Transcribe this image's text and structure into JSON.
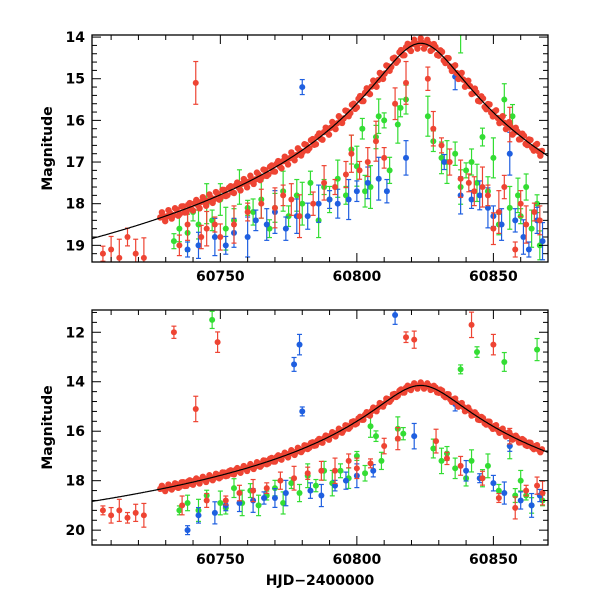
{
  "figure": {
    "xlabel": "HJD−2400000",
    "colors": {
      "green": "#33dd33",
      "blue": "#1f5fe0",
      "red": "#ee4433",
      "fit": "#000000"
    }
  },
  "chart_data": [
    {
      "type": "scatter",
      "ylabel": "Magnitude",
      "xlabel": "",
      "xlim": [
        60703,
        60870
      ],
      "ylim": [
        19.4,
        13.95
      ],
      "y_inverted": true,
      "xticks": [
        60750,
        60800,
        60850
      ],
      "yticks": [
        14,
        15,
        16,
        17,
        18,
        19
      ],
      "grid": false,
      "fit_curve": {
        "name": "model",
        "t0": 60823.4,
        "peak_mag": 14.15
      },
      "series": [
        {
          "color": "green",
          "points": [
            [
              60733,
              18.9
            ],
            [
              60735,
              18.6
            ],
            [
              60738,
              18.7
            ],
            [
              60740,
              18.2
            ],
            [
              60742,
              18.5
            ],
            [
              60745,
              18.0
            ],
            [
              60747,
              18.4
            ],
            [
              60750,
              17.9
            ],
            [
              60752,
              18.6
            ],
            [
              60755,
              18.4
            ],
            [
              60757,
              17.6
            ],
            [
              60760,
              18.1
            ],
            [
              60762,
              18.2
            ],
            [
              60765,
              17.9
            ],
            [
              60768,
              18.6
            ],
            [
              60770,
              18.1
            ],
            [
              60773,
              17.7
            ],
            [
              60775,
              18.3
            ],
            [
              60778,
              17.8
            ],
            [
              60780,
              18.0
            ],
            [
              60783,
              17.5
            ],
            [
              60786,
              18.4
            ],
            [
              60788,
              17.6
            ],
            [
              60790,
              17.9
            ],
            [
              60793,
              17.4
            ],
            [
              60796,
              17.8
            ],
            [
              60798,
              16.7
            ],
            [
              60800,
              17.1
            ],
            [
              60802,
              16.2
            ],
            [
              60803,
              17.7
            ],
            [
              60805,
              17.6
            ],
            [
              60807,
              16.4
            ],
            [
              60808,
              15.9
            ],
            [
              60810,
              16.0
            ],
            [
              60812,
              17.2
            ],
            [
              60815,
              16.1
            ],
            [
              60816,
              15.7
            ],
            [
              60818,
              15.5
            ],
            [
              60826,
              15.9
            ],
            [
              60828,
              16.5
            ],
            [
              60831,
              16.9
            ],
            [
              60833,
              17.0
            ],
            [
              60836,
              16.8
            ],
            [
              60838,
              17.6
            ],
            [
              60840,
              17.2
            ],
            [
              60842,
              17.0
            ],
            [
              60844,
              17.5
            ],
            [
              60846,
              16.4
            ],
            [
              60848,
              17.7
            ],
            [
              60850,
              16.9
            ],
            [
              60852,
              18.5
            ],
            [
              60854,
              15.5
            ],
            [
              60856,
              18.1
            ],
            [
              60857,
              15.9
            ],
            [
              60859,
              17.8
            ],
            [
              60860,
              18.3
            ],
            [
              60862,
              17.6
            ],
            [
              60864,
              18.6
            ],
            [
              60866,
              18.0
            ],
            [
              60867,
              19.0
            ],
            [
              60838,
              13.9
            ]
          ]
        },
        {
          "color": "blue",
          "points": [
            [
              60738,
              19.1
            ],
            [
              60742,
              19.0
            ],
            [
              60748,
              18.8
            ],
            [
              60752,
              19.0
            ],
            [
              60755,
              18.7
            ],
            [
              60760,
              18.8
            ],
            [
              60763,
              18.4
            ],
            [
              60767,
              18.5
            ],
            [
              60770,
              18.2
            ],
            [
              60774,
              18.6
            ],
            [
              60778,
              18.3
            ],
            [
              60780,
              15.2
            ],
            [
              60782,
              18.3
            ],
            [
              60786,
              18.0
            ],
            [
              60790,
              17.9
            ],
            [
              60793,
              18.0
            ],
            [
              60797,
              17.9
            ],
            [
              60800,
              17.7
            ],
            [
              60804,
              17.5
            ],
            [
              60808,
              17.4
            ],
            [
              60811,
              17.7
            ],
            [
              60818,
              16.9
            ],
            [
              60832,
              17.0
            ],
            [
              60836,
              14.95
            ],
            [
              60838,
              17.8
            ],
            [
              60842,
              17.9
            ],
            [
              60845,
              17.8
            ],
            [
              60848,
              18.1
            ],
            [
              60850,
              18.3
            ],
            [
              60853,
              18.5
            ],
            [
              60856,
              16.8
            ],
            [
              60858,
              18.4
            ],
            [
              60861,
              18.8
            ],
            [
              60863,
              19.1
            ],
            [
              60866,
              18.4
            ],
            [
              60868,
              18.9
            ]
          ]
        },
        {
          "color": "red",
          "points": [
            [
              60707,
              19.2
            ],
            [
              60710,
              19.1
            ],
            [
              60713,
              19.3
            ],
            [
              60716,
              18.8
            ],
            [
              60719,
              19.2
            ],
            [
              60722,
              19.3
            ],
            [
              60735,
              19.0
            ],
            [
              60738,
              18.5
            ],
            [
              60741,
              15.1
            ],
            [
              60743,
              18.8
            ],
            [
              60745,
              18.6
            ],
            [
              60748,
              18.5
            ],
            [
              60750,
              18.8
            ],
            [
              60755,
              18.5
            ],
            [
              60760,
              18.2
            ],
            [
              60765,
              18.0
            ],
            [
              60770,
              18.1
            ],
            [
              60773,
              17.8
            ],
            [
              60776,
              17.9
            ],
            [
              60779,
              18.3
            ],
            [
              60784,
              18.0
            ],
            [
              60788,
              17.5
            ],
            [
              60792,
              17.6
            ],
            [
              60796,
              17.3
            ],
            [
              60798,
              16.8
            ],
            [
              60801,
              17.2
            ],
            [
              60804,
              17.0
            ],
            [
              60807,
              16.5
            ],
            [
              60810,
              16.9
            ],
            [
              60814,
              15.6
            ],
            [
              60818,
              15.1
            ],
            [
              60826,
              15.0
            ],
            [
              60828,
              16.2
            ],
            [
              60831,
              16.6
            ],
            [
              60834,
              17.0
            ],
            [
              60838,
              17.4
            ],
            [
              60841,
              17.5
            ],
            [
              60843,
              17.7
            ],
            [
              60846,
              17.6
            ],
            [
              60848,
              17.8
            ],
            [
              60850,
              18.6
            ],
            [
              60852,
              18.2
            ],
            [
              60854,
              17.6
            ],
            [
              60856,
              16.1
            ],
            [
              60858,
              19.1
            ],
            [
              60860,
              18.0
            ],
            [
              60862,
              18.5
            ],
            [
              60865,
              18.2
            ],
            [
              60867,
              18.4
            ]
          ]
        }
      ]
    },
    {
      "type": "scatter",
      "ylabel": "Magnitude",
      "xlabel": "HJD−2400000",
      "xlim": [
        60703,
        60870
      ],
      "ylim": [
        20.6,
        11.1
      ],
      "y_inverted": true,
      "xticks": [
        60750,
        60800,
        60850
      ],
      "yticks": [
        12,
        14,
        16,
        18,
        20
      ],
      "grid": false,
      "fit_curve": {
        "name": "model",
        "t0": 60823.4,
        "peak_mag": 14.15
      },
      "series": [
        {
          "color": "green",
          "points": [
            [
              60735,
              19.2
            ],
            [
              60738,
              18.9
            ],
            [
              60742,
              19.2
            ],
            [
              60745,
              18.6
            ],
            [
              60747,
              11.5
            ],
            [
              60750,
              18.9
            ],
            [
              60752,
              19.1
            ],
            [
              60755,
              18.3
            ],
            [
              60758,
              18.9
            ],
            [
              60761,
              18.4
            ],
            [
              60764,
              19.0
            ],
            [
              60767,
              18.6
            ],
            [
              60770,
              18.3
            ],
            [
              60773,
              18.9
            ],
            [
              60776,
              18.1
            ],
            [
              60779,
              18.5
            ],
            [
              60782,
              17.8
            ],
            [
              60785,
              18.2
            ],
            [
              60788,
              17.6
            ],
            [
              60791,
              18.1
            ],
            [
              60794,
              17.6
            ],
            [
              60797,
              17.9
            ],
            [
              60800,
              17.0
            ],
            [
              60803,
              17.7
            ],
            [
              60805,
              15.8
            ],
            [
              60807,
              16.2
            ],
            [
              60809,
              17.2
            ],
            [
              60815,
              15.9
            ],
            [
              60817,
              16.1
            ],
            [
              60828,
              16.7
            ],
            [
              60831,
              17.2
            ],
            [
              60833,
              16.9
            ],
            [
              60836,
              17.5
            ],
            [
              60838,
              13.5
            ],
            [
              60840,
              17.9
            ],
            [
              60842,
              17.2
            ],
            [
              60844,
              12.8
            ],
            [
              60846,
              17.9
            ],
            [
              60848,
              17.4
            ],
            [
              60852,
              18.4
            ],
            [
              60854,
              13.2
            ],
            [
              60856,
              16.6
            ],
            [
              60858,
              18.6
            ],
            [
              60860,
              18.0
            ],
            [
              60862,
              18.6
            ],
            [
              60864,
              19.0
            ],
            [
              60866,
              12.7
            ],
            [
              60868,
              18.8
            ]
          ]
        },
        {
          "color": "blue",
          "points": [
            [
              60738,
              20.0
            ],
            [
              60742,
              19.4
            ],
            [
              60748,
              19.3
            ],
            [
              60752,
              19.0
            ],
            [
              60757,
              18.9
            ],
            [
              60762,
              18.8
            ],
            [
              60766,
              18.7
            ],
            [
              60770,
              18.7
            ],
            [
              60774,
              18.5
            ],
            [
              60777,
              13.3
            ],
            [
              60779,
              12.5
            ],
            [
              60780,
              15.2
            ],
            [
              60783,
              18.4
            ],
            [
              60787,
              18.6
            ],
            [
              60792,
              18.2
            ],
            [
              60796,
              18.0
            ],
            [
              60800,
              17.8
            ],
            [
              60806,
              17.6
            ],
            [
              60814,
              11.3
            ],
            [
              60821,
              16.2
            ],
            [
              60836,
              14.9
            ],
            [
              60840,
              17.6
            ],
            [
              60845,
              17.9
            ],
            [
              60850,
              18.1
            ],
            [
              60854,
              18.5
            ],
            [
              60856,
              16.6
            ],
            [
              60860,
              18.8
            ],
            [
              60864,
              19.0
            ],
            [
              60867,
              18.6
            ]
          ]
        },
        {
          "color": "red",
          "points": [
            [
              60707,
              19.2
            ],
            [
              60710,
              19.4
            ],
            [
              60713,
              19.2
            ],
            [
              60716,
              19.5
            ],
            [
              60719,
              19.3
            ],
            [
              60722,
              19.4
            ],
            [
              60733,
              12.0
            ],
            [
              60736,
              19.0
            ],
            [
              60741,
              15.1
            ],
            [
              60745,
              18.8
            ],
            [
              60749,
              12.4
            ],
            [
              60752,
              18.8
            ],
            [
              60757,
              18.5
            ],
            [
              60762,
              18.4
            ],
            [
              60767,
              18.3
            ],
            [
              60772,
              18.0
            ],
            [
              60777,
              17.9
            ],
            [
              60782,
              17.7
            ],
            [
              60787,
              17.6
            ],
            [
              60792,
              17.6
            ],
            [
              60797,
              17.2
            ],
            [
              60800,
              17.5
            ],
            [
              60805,
              17.3
            ],
            [
              60810,
              16.6
            ],
            [
              60815,
              16.3
            ],
            [
              60818,
              12.2
            ],
            [
              60821,
              12.3
            ],
            [
              60829,
              16.4
            ],
            [
              60833,
              17.1
            ],
            [
              60838,
              17.4
            ],
            [
              60842,
              11.7
            ],
            [
              60846,
              17.9
            ],
            [
              60850,
              12.5
            ],
            [
              60852,
              18.7
            ],
            [
              60856,
              16.2
            ],
            [
              60858,
              19.1
            ],
            [
              60862,
              18.4
            ],
            [
              60866,
              18.2
            ],
            [
              60868,
              18.5
            ]
          ]
        }
      ]
    }
  ]
}
